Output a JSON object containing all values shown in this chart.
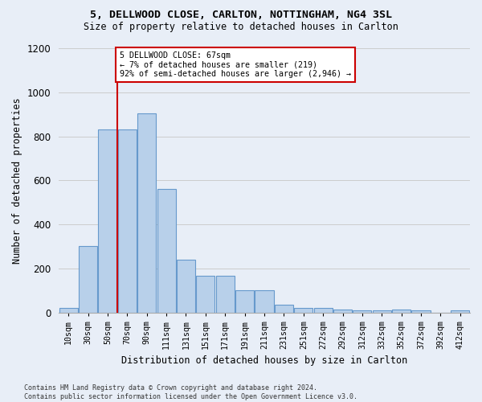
{
  "title_line1": "5, DELLWOOD CLOSE, CARLTON, NOTTINGHAM, NG4 3SL",
  "title_line2": "Size of property relative to detached houses in Carlton",
  "xlabel": "Distribution of detached houses by size in Carlton",
  "ylabel": "Number of detached properties",
  "bar_labels": [
    "10sqm",
    "30sqm",
    "50sqm",
    "70sqm",
    "90sqm",
    "111sqm",
    "131sqm",
    "151sqm",
    "171sqm",
    "191sqm",
    "211sqm",
    "231sqm",
    "251sqm",
    "272sqm",
    "292sqm",
    "312sqm",
    "332sqm",
    "352sqm",
    "372sqm",
    "392sqm",
    "412sqm"
  ],
  "bar_values": [
    20,
    300,
    830,
    830,
    905,
    560,
    240,
    165,
    165,
    100,
    100,
    35,
    22,
    22,
    12,
    10,
    10,
    12,
    8,
    0,
    8
  ],
  "bar_color": "#b8d0ea",
  "bar_edge_color": "#6699cc",
  "property_line_color": "#cc0000",
  "property_line_index": 3.5,
  "annotation_text": "5 DELLWOOD CLOSE: 67sqm\n← 7% of detached houses are smaller (219)\n92% of semi-detached houses are larger (2,946) →",
  "annotation_box_color": "#ffffff",
  "annotation_box_edge": "#cc0000",
  "ylim": [
    0,
    1200
  ],
  "yticks": [
    0,
    200,
    400,
    600,
    800,
    1000,
    1200
  ],
  "grid_color": "#cccccc",
  "bg_color": "#e8eef7",
  "footnote": "Contains HM Land Registry data © Crown copyright and database right 2024.\nContains public sector information licensed under the Open Government Licence v3.0."
}
